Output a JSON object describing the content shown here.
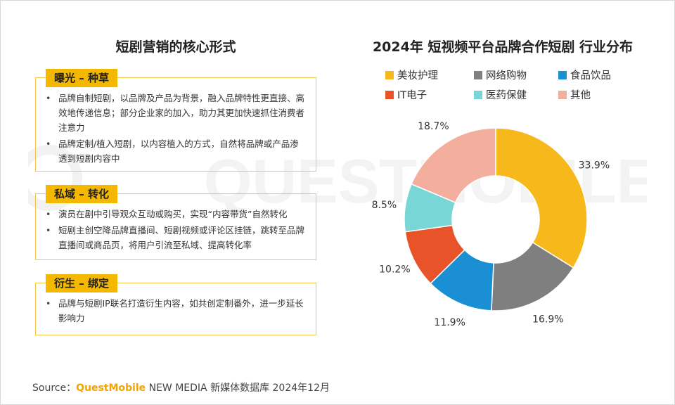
{
  "watermark": "QUESTMOBILE",
  "left": {
    "title": "短剧营销的核心形式",
    "cards": [
      {
        "tag": "曝光 – 种草",
        "bullets": [
          "品牌自制短剧，以品牌及产品为背景，融入品牌特性更直接、高效地传递信息；部分企业家的加入，助力其更加快速抓住消费者注意力",
          "品牌定制/植入短剧，以内容植入的方式，自然将品牌或产品渗透到短剧内容中"
        ]
      },
      {
        "tag": "私域 – 转化",
        "bullets": [
          "演员在剧中引导观众互动或购买，实现“内容带货”自然转化",
          "短剧主创空降品牌直播间、短剧视频或评论区挂链，跳转至品牌直播间或商品页，将用户引流至私域、提高转化率"
        ]
      },
      {
        "tag": "衍生 – 绑定",
        "bullets": [
          "品牌与短剧IP联名打造衍生内容，如共创定制番外，进一步延长影响力"
        ]
      }
    ]
  },
  "source": {
    "prefix": "Source：",
    "brand": "QuestMobile",
    "rest": " NEW MEDIA 新媒体数据库 2024年12月"
  },
  "chart_data": {
    "type": "pie",
    "variant": "donut",
    "title": "2024年 短视频平台品牌合作短剧 行业分布",
    "legend_position": "top",
    "categories": [
      "美妆护理",
      "网络购物",
      "食品饮品",
      "IT电子",
      "医药保健",
      "其他"
    ],
    "values": [
      33.9,
      16.9,
      11.9,
      10.2,
      8.5,
      18.7
    ],
    "labels": [
      "33.9%",
      "16.9%",
      "11.9%",
      "10.2%",
      "8.5%",
      "18.7%"
    ],
    "colors": [
      "#f7b81c",
      "#7f7f7f",
      "#1a8fd4",
      "#e8532a",
      "#79d6d6",
      "#f4ae9d"
    ],
    "unit": "%"
  }
}
